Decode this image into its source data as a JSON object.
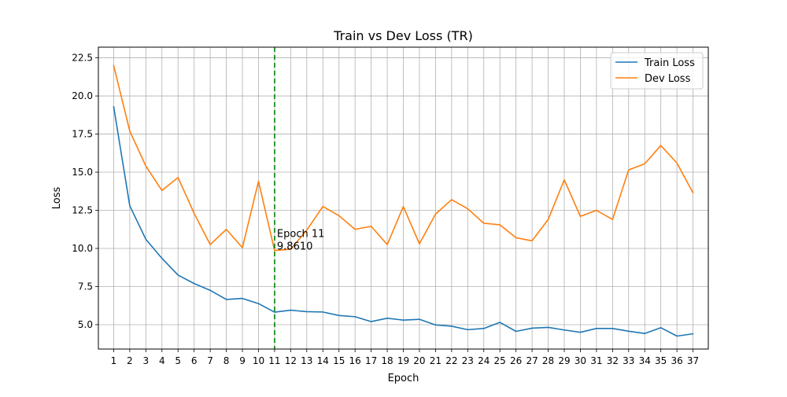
{
  "chart_data": {
    "type": "line",
    "title": "Train vs Dev Loss (TR)",
    "xlabel": "Epoch",
    "ylabel": "Loss",
    "x": [
      1,
      2,
      3,
      4,
      5,
      6,
      7,
      8,
      9,
      10,
      11,
      12,
      13,
      14,
      15,
      16,
      17,
      18,
      19,
      20,
      21,
      22,
      23,
      24,
      25,
      26,
      27,
      28,
      29,
      30,
      31,
      32,
      33,
      34,
      35,
      36,
      37
    ],
    "xlim": [
      0.05,
      37.95
    ],
    "ylim": [
      3.4,
      23.2
    ],
    "yticks": [
      5.0,
      7.5,
      10.0,
      12.5,
      15.0,
      17.5,
      20.0,
      22.5
    ],
    "ytick_labels": [
      "5.0",
      "7.5",
      "10.0",
      "12.5",
      "15.0",
      "17.5",
      "20.0",
      "22.5"
    ],
    "grid": true,
    "legend_position": "top-right",
    "series": [
      {
        "name": "Train Loss",
        "color": "#1f77b4",
        "values": [
          19.3,
          12.8,
          10.6,
          9.35,
          8.25,
          7.7,
          7.25,
          6.65,
          6.72,
          6.38,
          5.82,
          5.95,
          5.85,
          5.83,
          5.6,
          5.52,
          5.2,
          5.42,
          5.3,
          5.35,
          4.98,
          4.9,
          4.67,
          4.75,
          5.15,
          4.56,
          4.77,
          4.82,
          4.65,
          4.5,
          4.75,
          4.75,
          4.57,
          4.42,
          4.8,
          4.25,
          4.4
        ]
      },
      {
        "name": "Dev Loss",
        "color": "#ff7f0e",
        "values": [
          22.0,
          17.7,
          15.4,
          13.8,
          14.65,
          12.3,
          10.25,
          11.25,
          10.05,
          14.4,
          9.86,
          9.95,
          11.2,
          12.75,
          12.15,
          11.25,
          11.45,
          10.25,
          12.75,
          10.3,
          12.25,
          13.2,
          12.6,
          11.65,
          11.55,
          10.7,
          10.5,
          11.9,
          14.5,
          12.1,
          12.5,
          11.9,
          15.15,
          15.55,
          16.75,
          15.6,
          13.65
        ]
      }
    ],
    "best_marker": {
      "epoch": 11,
      "color": "#008000",
      "annotation_line1": "Epoch 11",
      "annotation_line2": "9.8610",
      "value": 9.861
    }
  }
}
